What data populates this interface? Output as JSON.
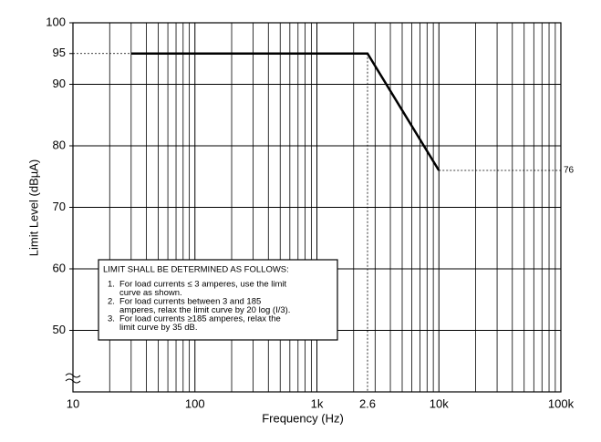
{
  "chart_data": {
    "type": "line",
    "x_label": "Frequency (Hz)",
    "y_label": "Limit Level (dBµA)",
    "xlim": [
      10,
      100000
    ],
    "ylim": [
      40,
      100
    ],
    "log_x": true,
    "grid": true,
    "xticks": [
      10,
      100,
      {
        "value": 1000,
        "label": "1k"
      },
      {
        "value": 2600,
        "label": "2.6"
      },
      {
        "value": 10000,
        "label": "10k"
      },
      {
        "value": 100000,
        "label": "100k"
      }
    ],
    "yticks": [
      50,
      60,
      70,
      80,
      90,
      95,
      100
    ],
    "series": [
      {
        "x": [
          30,
          2600,
          10000
        ],
        "values": [
          95,
          95,
          76
        ],
        "color": "#000000"
      }
    ],
    "annotation": {
      "title": "LIMIT SHALL BE DETERMINED AS FOLLOWS:",
      "markers": [
        "1.",
        "2.",
        "3."
      ],
      "items": [
        [
          "For load currents ≤ 3 amperes, use the limit",
          "curve as shown."
        ],
        [
          "For load currents between 3 and 185",
          "amperes, relax the limit curve by 20 log (I/3)."
        ],
        [
          "For load currents ≥185 amperes, relax the",
          "limit curve by 35 dB."
        ]
      ]
    }
  }
}
